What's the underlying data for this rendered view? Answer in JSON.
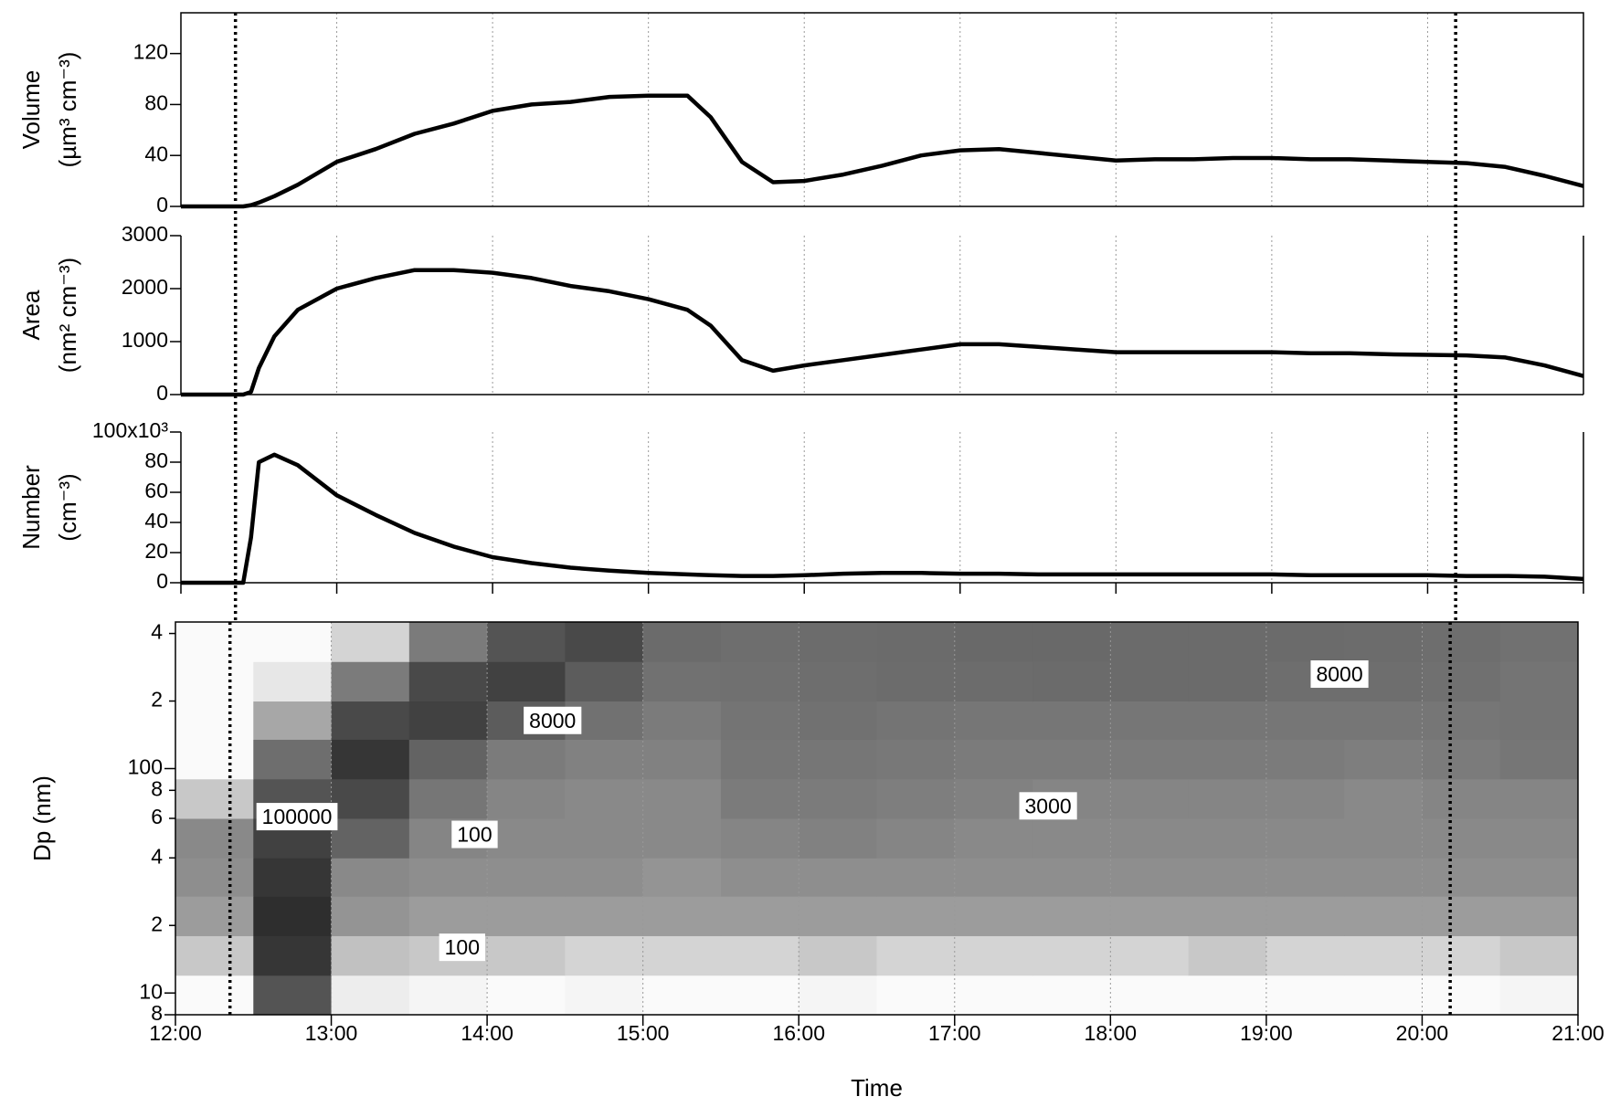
{
  "chart_data": [
    {
      "type": "line",
      "ylabel": [
        "Volume",
        "(µm³ cm⁻³)"
      ],
      "color": "#000000",
      "xlim": [
        12,
        21
      ],
      "xticks": [
        12,
        13,
        14,
        15,
        16,
        17,
        18,
        19,
        20,
        21
      ],
      "grid": true,
      "ylim": [
        0,
        152
      ],
      "yticks": [
        0,
        40,
        80,
        120
      ],
      "vlines": [
        12.35,
        20.18
      ],
      "x": [
        12.0,
        12.3,
        12.4,
        12.45,
        12.5,
        12.6,
        12.75,
        13.0,
        13.25,
        13.5,
        13.75,
        14.0,
        14.25,
        14.5,
        14.75,
        15.0,
        15.25,
        15.4,
        15.6,
        15.8,
        16.0,
        16.25,
        16.5,
        16.75,
        17.0,
        17.25,
        17.5,
        17.75,
        18.0,
        18.25,
        18.5,
        18.75,
        19.0,
        19.25,
        19.5,
        19.75,
        20.0,
        20.25,
        20.5,
        20.75,
        21.0
      ],
      "values": [
        0,
        0,
        0,
        1,
        3,
        8,
        17,
        35,
        45,
        57,
        65,
        75,
        80,
        82,
        86,
        87,
        87,
        70,
        35,
        19,
        20,
        25,
        32,
        40,
        44,
        45,
        42,
        39,
        36,
        37,
        37,
        38,
        38,
        37,
        37,
        36,
        35,
        34,
        31,
        24,
        16
      ]
    },
    {
      "type": "line",
      "ylabel": [
        "Area",
        "(nm² cm⁻³)"
      ],
      "color": "#000000",
      "xlim": [
        12,
        21
      ],
      "xticks": [
        12,
        13,
        14,
        15,
        16,
        17,
        18,
        19,
        20,
        21
      ],
      "grid": true,
      "ylim": [
        0,
        3000
      ],
      "yticks": [
        0,
        1000,
        2000,
        3000
      ],
      "vlines": [
        12.35,
        20.18
      ],
      "x": [
        12.0,
        12.3,
        12.4,
        12.45,
        12.5,
        12.6,
        12.75,
        13.0,
        13.25,
        13.5,
        13.75,
        14.0,
        14.25,
        14.5,
        14.75,
        15.0,
        15.25,
        15.4,
        15.6,
        15.8,
        16.0,
        16.25,
        16.5,
        16.75,
        17.0,
        17.25,
        17.5,
        17.75,
        18.0,
        18.25,
        18.5,
        18.75,
        19.0,
        19.25,
        19.5,
        19.75,
        20.0,
        20.25,
        20.5,
        20.75,
        21.0
      ],
      "values": [
        0,
        0,
        0,
        50,
        500,
        1100,
        1600,
        2000,
        2200,
        2350,
        2350,
        2300,
        2200,
        2050,
        1950,
        1800,
        1600,
        1300,
        650,
        450,
        550,
        650,
        750,
        850,
        950,
        950,
        900,
        850,
        800,
        800,
        800,
        800,
        800,
        780,
        780,
        760,
        750,
        740,
        700,
        550,
        350
      ]
    },
    {
      "type": "line",
      "ylabel": [
        "Number",
        "(cm⁻³)"
      ],
      "color": "#000000",
      "xlim": [
        12,
        21
      ],
      "xticks": [
        12,
        13,
        14,
        15,
        16,
        17,
        18,
        19,
        20,
        21
      ],
      "grid": true,
      "ylim": [
        0,
        100000
      ],
      "yticks": [
        0,
        {
          "value": 20000,
          "label": "20"
        },
        {
          "value": 40000,
          "label": "40"
        },
        {
          "value": 60000,
          "label": "60"
        },
        {
          "value": 80000,
          "label": "80"
        },
        {
          "value": 100000,
          "label": "100x10³"
        }
      ],
      "vlines": [
        12.35,
        20.18
      ],
      "x": [
        12.0,
        12.3,
        12.4,
        12.45,
        12.5,
        12.6,
        12.75,
        13.0,
        13.25,
        13.5,
        13.75,
        14.0,
        14.25,
        14.5,
        14.75,
        15.0,
        15.25,
        15.4,
        15.6,
        15.8,
        16.0,
        16.25,
        16.5,
        16.75,
        17.0,
        17.25,
        17.5,
        17.75,
        18.0,
        18.25,
        18.5,
        18.75,
        19.0,
        19.25,
        19.5,
        19.75,
        20.0,
        20.25,
        20.5,
        20.75,
        21.0
      ],
      "values": [
        0,
        0,
        0,
        30000,
        80000,
        85000,
        78000,
        58000,
        45000,
        33000,
        24000,
        17000,
        13000,
        10000,
        8000,
        6500,
        5500,
        5000,
        4500,
        4500,
        5000,
        6000,
        6500,
        6500,
        6000,
        6000,
        5500,
        5500,
        5500,
        5500,
        5500,
        5500,
        5500,
        5000,
        5000,
        5000,
        5000,
        4500,
        4500,
        4000,
        2500
      ]
    },
    {
      "type": "heatmap",
      "ylabel": [
        "Dp (nm)"
      ],
      "xlabel": "Time",
      "ylog": true,
      "xlim": [
        12,
        21
      ],
      "xticks": [
        {
          "value": 12,
          "label": "12:00"
        },
        {
          "value": 13,
          "label": "13:00"
        },
        {
          "value": 14,
          "label": "14:00"
        },
        {
          "value": 15,
          "label": "15:00"
        },
        {
          "value": 16,
          "label": "16:00"
        },
        {
          "value": 17,
          "label": "17:00"
        },
        {
          "value": 18,
          "label": "18:00"
        },
        {
          "value": 19,
          "label": "19:00"
        },
        {
          "value": 20,
          "label": "20:00"
        },
        {
          "value": 21,
          "label": "21:00"
        }
      ],
      "grid": true,
      "ylim": [
        8,
        450
      ],
      "yticks": [
        8,
        10,
        {
          "value": 20,
          "label": "2"
        },
        {
          "value": 40,
          "label": "4"
        },
        {
          "value": 60,
          "label": "6"
        },
        {
          "value": 80,
          "label": "8"
        },
        100,
        {
          "value": 200,
          "label": "2"
        },
        {
          "value": 400,
          "label": "4"
        }
      ],
      "vlines": [
        12.35,
        20.18
      ],
      "clim": [
        50,
        100000
      ],
      "x_bins": [
        12,
        12.5,
        13,
        13.5,
        14,
        14.5,
        15,
        15.5,
        16,
        16.5,
        17,
        17.5,
        18,
        18.5,
        19,
        19.5,
        20,
        20.5,
        21
      ],
      "y_bins": [
        8,
        12,
        18,
        27,
        40,
        60,
        90,
        135,
        200,
        300,
        450
      ],
      "values": [
        [
          50,
          20000,
          80,
          60,
          50,
          60,
          40,
          50,
          60,
          50,
          40,
          50,
          40,
          40,
          50,
          40,
          40,
          60
        ],
        [
          300,
          60000,
          400,
          300,
          300,
          200,
          200,
          200,
          300,
          200,
          200,
          200,
          200,
          300,
          200,
          200,
          200,
          300
        ],
        [
          1500,
          80000,
          2000,
          1500,
          1500,
          1500,
          1500,
          1500,
          1500,
          1500,
          1500,
          1500,
          1500,
          1500,
          1500,
          1500,
          1500,
          1500
        ],
        [
          2500,
          60000,
          3000,
          2500,
          2500,
          2500,
          2000,
          2500,
          2500,
          2500,
          2500,
          2500,
          2500,
          2500,
          2500,
          2500,
          2500,
          2500
        ],
        [
          3000,
          40000,
          12000,
          3500,
          3000,
          3000,
          3000,
          3500,
          4000,
          3500,
          3000,
          3000,
          3000,
          3000,
          3000,
          3000,
          3000,
          3000
        ],
        [
          300,
          20000,
          30000,
          6000,
          3500,
          3000,
          3000,
          5000,
          5000,
          4500,
          4000,
          3500,
          3500,
          3500,
          3500,
          3000,
          3500,
          3500
        ],
        [
          50,
          8000,
          60000,
          12000,
          5000,
          4000,
          4000,
          6000,
          6000,
          5500,
          5000,
          5000,
          5000,
          5000,
          5000,
          4500,
          5000,
          6000
        ],
        [
          20,
          1000,
          30000,
          40000,
          15000,
          7000,
          5000,
          6500,
          7000,
          6500,
          6000,
          6000,
          6000,
          6000,
          6000,
          6000,
          6000,
          6500
        ],
        [
          10,
          100,
          5000,
          30000,
          40000,
          15000,
          7000,
          7500,
          8000,
          8500,
          8500,
          9000,
          9000,
          9000,
          8000,
          8000,
          7500,
          6500
        ],
        [
          10,
          50,
          200,
          5000,
          20000,
          30000,
          9000,
          8000,
          8500,
          9000,
          9500,
          9500,
          9000,
          9000,
          9000,
          8500,
          8000,
          7000
        ]
      ],
      "annotations": [
        {
          "text": "8000",
          "x": 14.42,
          "y": 161
        },
        {
          "text": "100000",
          "x": 12.78,
          "y": 60
        },
        {
          "text": "100",
          "x": 13.92,
          "y": 50
        },
        {
          "text": "100",
          "x": 13.84,
          "y": 15.7
        },
        {
          "text": "3000",
          "x": 17.6,
          "y": 67
        },
        {
          "text": "8000",
          "x": 19.47,
          "y": 259
        }
      ]
    }
  ]
}
